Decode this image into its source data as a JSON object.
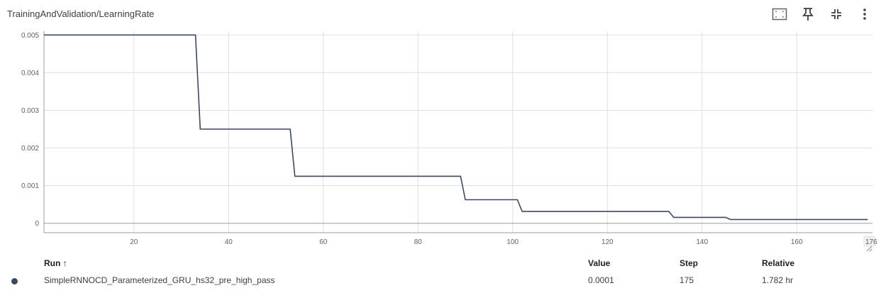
{
  "card": {
    "title": "TrainingAndValidation/LearningRate"
  },
  "toolbar": {
    "icons": [
      "fit-domain-icon",
      "pin-icon",
      "collapse-icon",
      "more-vert-icon"
    ]
  },
  "chart_data": {
    "type": "line",
    "title": "TrainingAndValidation/LearningRate",
    "xlabel": "",
    "ylabel": "",
    "xlim": [
      1,
      176
    ],
    "ylim": [
      -0.00025,
      0.00525
    ],
    "x_ticks": [
      20,
      40,
      60,
      80,
      100,
      120,
      140,
      160
    ],
    "x_tick_labels": [
      "20",
      "40",
      "60",
      "80",
      "100",
      "120",
      "140",
      "160"
    ],
    "x_edge_label": "176",
    "y_ticks": [
      0,
      0.001,
      0.002,
      0.003,
      0.004,
      0.005
    ],
    "y_tick_labels": [
      "0",
      "0.001",
      "0.002",
      "0.003",
      "0.004",
      "0.005"
    ],
    "grid": true,
    "series": [
      {
        "color": "#3b4a5e",
        "x": [
          1,
          33,
          34,
          53,
          54,
          89,
          90,
          101,
          102,
          133,
          134,
          145,
          146,
          175
        ],
        "y": [
          0.005,
          0.005,
          0.0025,
          0.0025,
          0.00125,
          0.00125,
          0.000625,
          0.000625,
          0.0003125,
          0.0003125,
          0.00015625,
          0.00015625,
          0.0001,
          0.0001
        ]
      }
    ]
  },
  "legend": {
    "headers": {
      "run": "Run ↑",
      "value": "Value",
      "step": "Step",
      "relative": "Relative"
    },
    "rows": [
      {
        "color": "#3b4a5e",
        "run": "SimpleRNNOCD_Parameterized_GRU_hs32_pre_high_pass",
        "value": "0.0001",
        "step": "175",
        "relative": "1.782 hr"
      }
    ]
  }
}
